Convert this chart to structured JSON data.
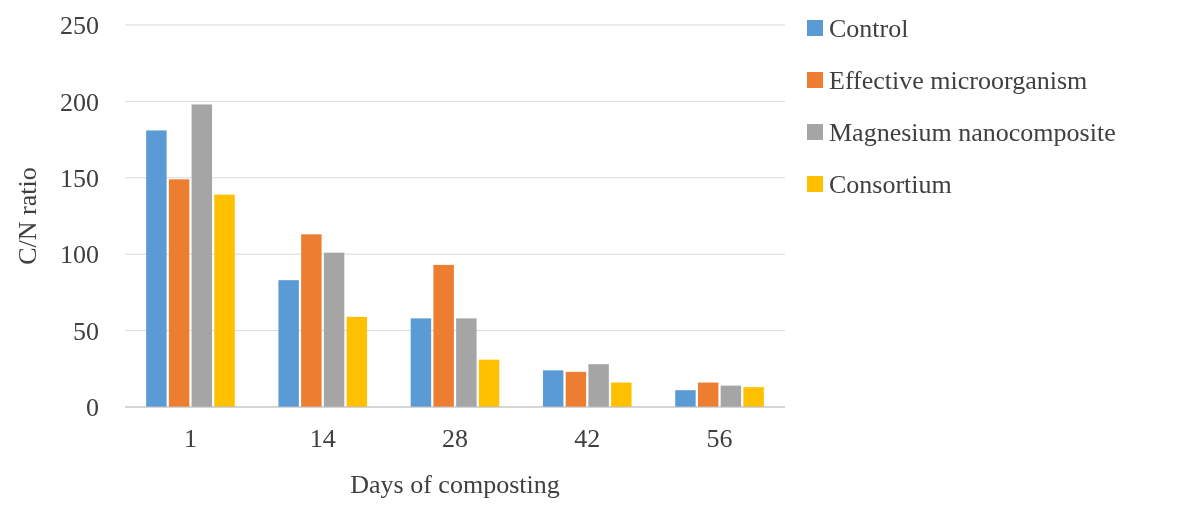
{
  "chart_data": {
    "type": "bar",
    "xlabel": "Days of composting",
    "ylabel": "C/N ratio",
    "categories": [
      "1",
      "14",
      "28",
      "42",
      "56"
    ],
    "series": [
      {
        "name": "Control",
        "color": "#5b9bd5",
        "values": [
          181,
          83,
          58,
          24,
          11
        ]
      },
      {
        "name": "Effective microorganism",
        "color": "#ed7d31",
        "values": [
          149,
          113,
          93,
          23,
          16
        ]
      },
      {
        "name": "Magnesium nanocomposite",
        "color": "#a5a5a5",
        "values": [
          198,
          101,
          58,
          28,
          14
        ]
      },
      {
        "name": "Consortium",
        "color": "#ffc000",
        "values": [
          139,
          59,
          31,
          16,
          13
        ]
      }
    ],
    "ylim": [
      0,
      250
    ],
    "yticks": [
      0,
      50,
      100,
      150,
      200,
      250
    ],
    "grid": "y",
    "legend": "right"
  }
}
